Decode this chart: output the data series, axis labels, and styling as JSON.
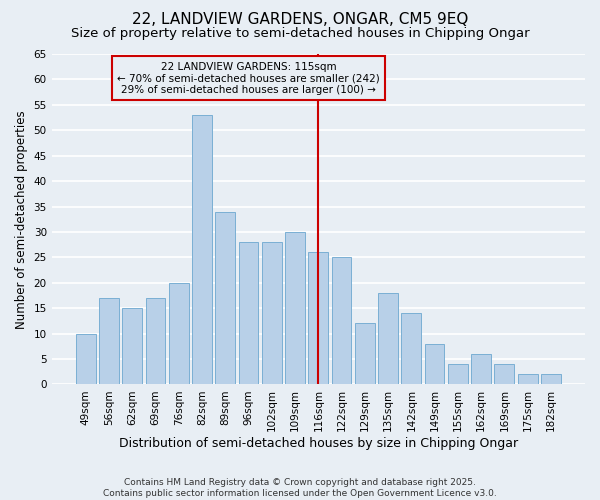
{
  "title": "22, LANDVIEW GARDENS, ONGAR, CM5 9EQ",
  "subtitle": "Size of property relative to semi-detached houses in Chipping Ongar",
  "xlabel": "Distribution of semi-detached houses by size in Chipping Ongar",
  "ylabel": "Number of semi-detached properties",
  "categories": [
    "49sqm",
    "56sqm",
    "62sqm",
    "69sqm",
    "76sqm",
    "82sqm",
    "89sqm",
    "96sqm",
    "102sqm",
    "109sqm",
    "116sqm",
    "122sqm",
    "129sqm",
    "135sqm",
    "142sqm",
    "149sqm",
    "155sqm",
    "162sqm",
    "169sqm",
    "175sqm",
    "182sqm"
  ],
  "values": [
    10,
    17,
    15,
    17,
    20,
    53,
    34,
    28,
    28,
    30,
    26,
    25,
    12,
    18,
    14,
    8,
    4,
    6,
    4,
    2,
    2
  ],
  "bar_color": "#b8d0e8",
  "bar_edge_color": "#7aafd4",
  "vline_x_index": 10,
  "vline_color": "#cc0000",
  "annotation_title": "22 LANDVIEW GARDENS: 115sqm",
  "annotation_line1": "← 70% of semi-detached houses are smaller (242)",
  "annotation_line2": "29% of semi-detached houses are larger (100) →",
  "annotation_box_color": "#cc0000",
  "ylim": [
    0,
    65
  ],
  "yticks": [
    0,
    5,
    10,
    15,
    20,
    25,
    30,
    35,
    40,
    45,
    50,
    55,
    60,
    65
  ],
  "footer_line1": "Contains HM Land Registry data © Crown copyright and database right 2025.",
  "footer_line2": "Contains public sector information licensed under the Open Government Licence v3.0.",
  "background_color": "#e8eef4",
  "grid_color": "#ffffff",
  "title_fontsize": 11,
  "subtitle_fontsize": 9.5,
  "xlabel_fontsize": 9,
  "ylabel_fontsize": 8.5,
  "tick_fontsize": 7.5,
  "footer_fontsize": 6.5,
  "ann_fontsize": 7.5
}
